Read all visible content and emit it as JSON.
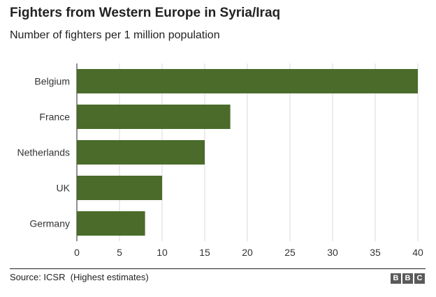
{
  "title": "Fighters from Western Europe in Syria/Iraq",
  "subtitle": "Number of fighters per 1 million population",
  "source": "Source: ICSR  (Highest estimates)",
  "logo_letters": [
    "B",
    "B",
    "C"
  ],
  "colors": {
    "bar": "#4a6b2a",
    "grid": "#d9d9d9",
    "axis": "#222222"
  },
  "chart_data": {
    "type": "bar",
    "orientation": "horizontal",
    "categories": [
      "Belgium",
      "France",
      "Netherlands",
      "UK",
      "Germany"
    ],
    "values": [
      40,
      18,
      15,
      10,
      8
    ],
    "title": "Fighters from Western Europe in Syria/Iraq",
    "subtitle": "Number of fighters per 1 million population",
    "xlabel": "",
    "ylabel": "",
    "xlim": [
      0,
      40
    ],
    "xticks": [
      0,
      5,
      10,
      15,
      20,
      25,
      30,
      35,
      40
    ],
    "grid": true,
    "legend": "none"
  }
}
